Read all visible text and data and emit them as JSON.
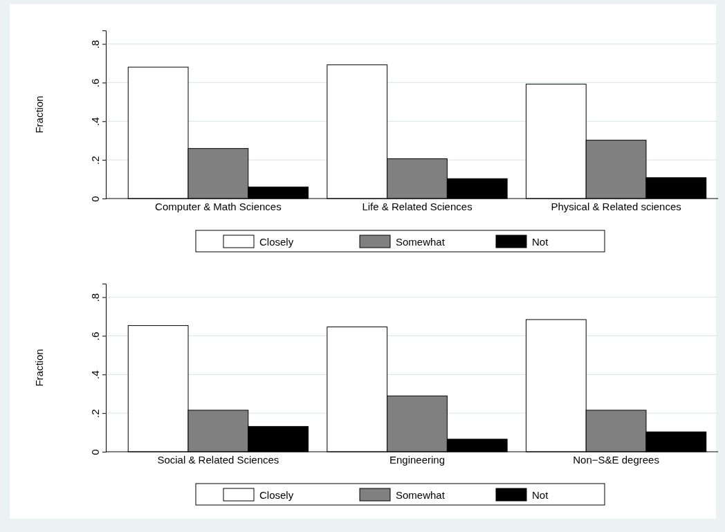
{
  "chart_data": [
    {
      "type": "bar",
      "ylabel": "Fraction",
      "categories": [
        "Computer & Math Sciences",
        "Life & Related Sciences",
        "Physical & Related sciences"
      ],
      "series": [
        {
          "name": "Closely",
          "color": "#ffffff",
          "values": [
            0.68,
            0.692,
            0.592
          ]
        },
        {
          "name": "Somewhat",
          "color": "#808080",
          "values": [
            0.259,
            0.206,
            0.302
          ]
        },
        {
          "name": "Not",
          "color": "#000000",
          "values": [
            0.06,
            0.103,
            0.108
          ]
        }
      ],
      "ylim": [
        0,
        0.87
      ],
      "yticks": [
        {
          "value": 0,
          "label": "0"
        },
        {
          "value": 0.2,
          "label": ".2"
        },
        {
          "value": 0.4,
          "label": ".4"
        },
        {
          "value": 0.6,
          "label": ".6"
        },
        {
          "value": 0.8,
          "label": ".8"
        }
      ],
      "grid": "y",
      "legend": "bottom"
    },
    {
      "type": "bar",
      "ylabel": "Fraction",
      "categories": [
        "Social & Related Sciences",
        "Engineering",
        "Non−S&E degrees"
      ],
      "series": [
        {
          "name": "Closely",
          "color": "#ffffff",
          "values": [
            0.653,
            0.646,
            0.684
          ]
        },
        {
          "name": "Somewhat",
          "color": "#808080",
          "values": [
            0.215,
            0.289,
            0.215
          ]
        },
        {
          "name": "Not",
          "color": "#000000",
          "values": [
            0.131,
            0.065,
            0.103
          ]
        }
      ],
      "ylim": [
        0,
        0.87
      ],
      "yticks": [
        {
          "value": 0,
          "label": "0"
        },
        {
          "value": 0.2,
          "label": ".2"
        },
        {
          "value": 0.4,
          "label": ".4"
        },
        {
          "value": 0.6,
          "label": ".6"
        },
        {
          "value": 0.8,
          "label": ".8"
        }
      ],
      "grid": "y",
      "legend": "bottom"
    }
  ]
}
